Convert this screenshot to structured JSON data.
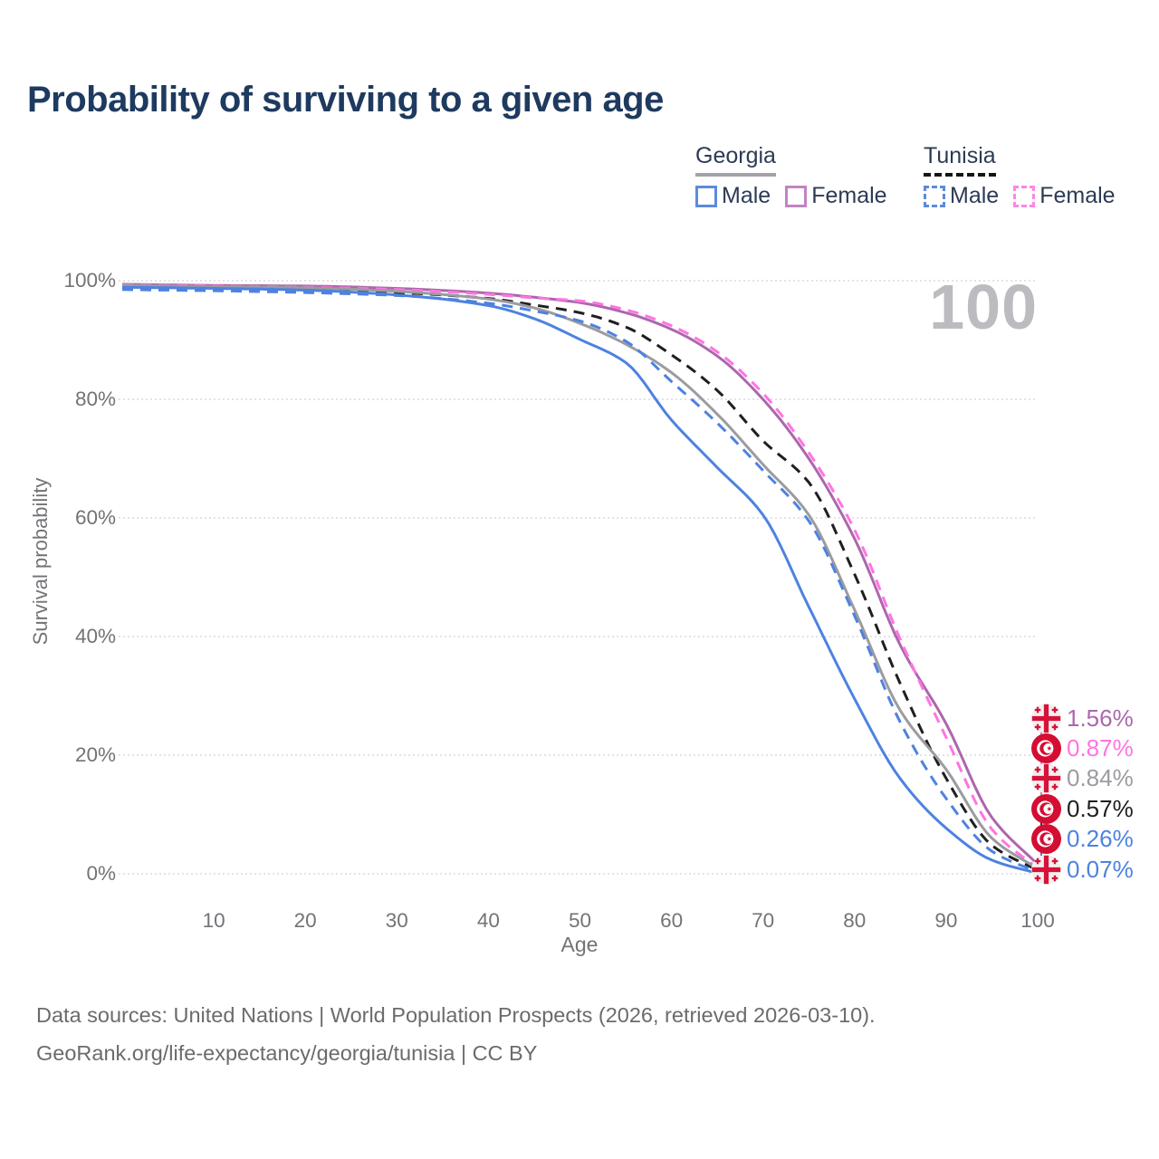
{
  "title": "Probability of surviving to a given age",
  "watermark": "100",
  "legend": {
    "groups": [
      {
        "name": "Georgia",
        "line_style": "solid",
        "items": [
          {
            "label": "Male"
          },
          {
            "label": "Female"
          }
        ]
      },
      {
        "name": "Tunisia",
        "line_style": "dashed",
        "items": [
          {
            "label": "Male"
          },
          {
            "label": "Female"
          }
        ]
      }
    ]
  },
  "chart_data": {
    "type": "line",
    "title": "Probability of surviving to a given age",
    "xlabel": "Age",
    "ylabel": "Survival probability",
    "xlim": [
      0,
      100
    ],
    "ylim": [
      0,
      100
    ],
    "grid": "horizontal",
    "legend_position": "top-right",
    "x_ticks": [
      10,
      20,
      30,
      40,
      50,
      60,
      70,
      80,
      90,
      100
    ],
    "y_ticks": [
      {
        "label": "100%",
        "value": 100
      },
      {
        "label": "80%",
        "value": 80
      },
      {
        "label": "60%",
        "value": 60
      },
      {
        "label": "40%",
        "value": 40
      },
      {
        "label": "20%",
        "value": 20
      },
      {
        "label": "0%",
        "value": 0
      }
    ],
    "series": [
      {
        "id": "georgia_female",
        "name": "Georgia Female",
        "style": "solid",
        "color": "#ac67ac",
        "points": [
          [
            0,
            99.4
          ],
          [
            10,
            99.2
          ],
          [
            20,
            99.1
          ],
          [
            30,
            98.7
          ],
          [
            40,
            97.9
          ],
          [
            45,
            97.2
          ],
          [
            50,
            96.3
          ],
          [
            55,
            94.6
          ],
          [
            60,
            91.8
          ],
          [
            65,
            87.3
          ],
          [
            70,
            80.0
          ],
          [
            75,
            70.0
          ],
          [
            80,
            56.5
          ],
          [
            85,
            38.5
          ],
          [
            90,
            25.3
          ],
          [
            95,
            9.5
          ],
          [
            100,
            1.56
          ]
        ]
      },
      {
        "id": "tunisia_female",
        "name": "Tunisia Female",
        "style": "dashed",
        "color": "#ff74e1",
        "points": [
          [
            0,
            99.3
          ],
          [
            10,
            99.1
          ],
          [
            20,
            98.9
          ],
          [
            30,
            98.5
          ],
          [
            40,
            97.7
          ],
          [
            45,
            97.1
          ],
          [
            50,
            96.6
          ],
          [
            55,
            95.1
          ],
          [
            60,
            92.4
          ],
          [
            65,
            88.0
          ],
          [
            70,
            81.0
          ],
          [
            75,
            71.0
          ],
          [
            80,
            58.0
          ],
          [
            85,
            39.5
          ],
          [
            90,
            23.0
          ],
          [
            95,
            7.5
          ],
          [
            100,
            0.87
          ]
        ]
      },
      {
        "id": "tunisia_all",
        "name": "Tunisia",
        "style": "dashed",
        "color": "#1f1f1f",
        "points": [
          [
            0,
            98.9
          ],
          [
            10,
            98.7
          ],
          [
            20,
            98.5
          ],
          [
            30,
            98.0
          ],
          [
            40,
            97.0
          ],
          [
            45,
            95.9
          ],
          [
            50,
            94.6
          ],
          [
            55,
            92.2
          ],
          [
            60,
            87.5
          ],
          [
            65,
            81.5
          ],
          [
            70,
            73.0
          ],
          [
            75,
            66.0
          ],
          [
            80,
            50.5
          ],
          [
            85,
            32.0
          ],
          [
            90,
            16.1
          ],
          [
            95,
            4.8
          ],
          [
            100,
            0.57
          ]
        ]
      },
      {
        "id": "georgia_all",
        "name": "Georgia",
        "style": "solid",
        "color": "#9b9ba1",
        "points": [
          [
            0,
            99.2
          ],
          [
            10,
            99.0
          ],
          [
            20,
            98.8
          ],
          [
            30,
            98.2
          ],
          [
            40,
            96.9
          ],
          [
            45,
            95.4
          ],
          [
            50,
            92.8
          ],
          [
            55,
            89.3
          ],
          [
            60,
            84.5
          ],
          [
            65,
            77.5
          ],
          [
            70,
            69.0
          ],
          [
            75,
            60.5
          ],
          [
            80,
            44.5
          ],
          [
            85,
            27.5
          ],
          [
            90,
            17.6
          ],
          [
            95,
            6.0
          ],
          [
            100,
            0.84
          ]
        ]
      },
      {
        "id": "tunisia_male",
        "name": "Tunisia Male",
        "style": "dashed",
        "color": "#4d82e0",
        "points": [
          [
            0,
            98.5
          ],
          [
            10,
            98.3
          ],
          [
            20,
            98.0
          ],
          [
            30,
            97.5
          ],
          [
            40,
            96.2
          ],
          [
            45,
            94.9
          ],
          [
            50,
            93.2
          ],
          [
            55,
            89.8
          ],
          [
            60,
            83.0
          ],
          [
            65,
            76.0
          ],
          [
            70,
            68.0
          ],
          [
            75,
            59.5
          ],
          [
            80,
            43.5
          ],
          [
            85,
            25.5
          ],
          [
            90,
            12.7
          ],
          [
            95,
            3.8
          ],
          [
            100,
            0.26
          ]
        ]
      },
      {
        "id": "georgia_male",
        "name": "Georgia Male",
        "style": "solid",
        "color": "#4d82e0",
        "points": [
          [
            0,
            98.9
          ],
          [
            10,
            98.7
          ],
          [
            20,
            98.4
          ],
          [
            30,
            97.6
          ],
          [
            40,
            95.8
          ],
          [
            45,
            93.6
          ],
          [
            50,
            90.1
          ],
          [
            55,
            86.2
          ],
          [
            60,
            76.5
          ],
          [
            65,
            68.5
          ],
          [
            70,
            60.5
          ],
          [
            75,
            45.0
          ],
          [
            80,
            29.5
          ],
          [
            85,
            16.0
          ],
          [
            90,
            7.7
          ],
          [
            95,
            2.3
          ],
          [
            100,
            0.07
          ]
        ]
      }
    ],
    "endpoint_labels": [
      {
        "flag": "georgia",
        "series": "georgia_female",
        "value": "1.56%"
      },
      {
        "flag": "tunisia",
        "series": "tunisia_female",
        "value": "0.87%"
      },
      {
        "flag": "georgia",
        "series": "georgia_all",
        "value": "0.84%"
      },
      {
        "flag": "tunisia",
        "series": "tunisia_all",
        "value": "0.57%"
      },
      {
        "flag": "tunisia",
        "series": "tunisia_male",
        "value": "0.26%"
      },
      {
        "flag": "georgia",
        "series": "georgia_male",
        "value": "0.07%"
      }
    ]
  },
  "colors": {
    "title_text": "#1e3a5f",
    "male_blue": "#4d82e0",
    "georgia_female_plum": "#ac67ac",
    "tunisia_female_pink": "#ff74e1",
    "georgia_all_gray": "#9b9ba1",
    "tunisia_all_black": "#1f1f1f",
    "axis_text": "#737377",
    "watermark_gray": "#bcbcc0",
    "flag_red": "#d6123b"
  },
  "footer": {
    "line1": "Data sources: United Nations | World Population Prospects (2026, retrieved 2026-03-10).",
    "line2": "GeoRank.org/life-expectancy/georgia/tunisia | CC BY"
  }
}
